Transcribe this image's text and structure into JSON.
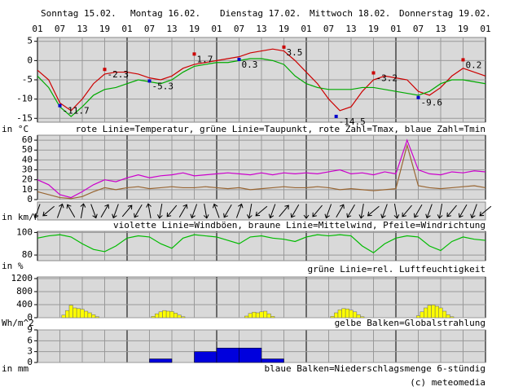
{
  "chart_data": [
    {
      "type": "line",
      "day_labels": [
        "Sonntag 15.02.",
        "Montag 16.02.",
        "Dienstag 17.02.",
        "Mittwoch 18.02.",
        "Donnerstag 19.02."
      ],
      "xlim": [
        0,
        120
      ],
      "xticks": [
        {
          "value": 0,
          "label": "01"
        },
        {
          "value": 6,
          "label": "07"
        },
        {
          "value": 12,
          "label": "13"
        },
        {
          "value": 18,
          "label": "19"
        },
        {
          "value": 24,
          "label": "01"
        },
        {
          "value": 30,
          "label": "07"
        },
        {
          "value": 36,
          "label": "13"
        },
        {
          "value": 42,
          "label": "19"
        },
        {
          "value": 48,
          "label": "01"
        },
        {
          "value": 54,
          "label": "07"
        },
        {
          "value": 60,
          "label": "13"
        },
        {
          "value": 66,
          "label": "19"
        },
        {
          "value": 72,
          "label": "01"
        },
        {
          "value": 78,
          "label": "07"
        },
        {
          "value": 84,
          "label": "13"
        },
        {
          "value": 90,
          "label": "19"
        },
        {
          "value": 96,
          "label": "01"
        },
        {
          "value": 102,
          "label": "07"
        },
        {
          "value": 108,
          "label": "13"
        },
        {
          "value": 114,
          "label": "19"
        },
        {
          "value": 120,
          "label": "01"
        }
      ],
      "ylim": [
        -16,
        6
      ],
      "yticks": [
        5,
        0,
        -5,
        -10,
        -15
      ],
      "ylabel": "in °C",
      "caption": "rote Linie=Temperatur, grüne Linie=Taupunkt, rote Zahl=Tmax, blaue Zahl=Tmin",
      "x": [
        0,
        3,
        6,
        9,
        12,
        15,
        18,
        21,
        24,
        27,
        30,
        33,
        36,
        39,
        42,
        45,
        48,
        51,
        54,
        57,
        60,
        63,
        66,
        69,
        72,
        75,
        78,
        81,
        84,
        87,
        90,
        93,
        96,
        99,
        102,
        105,
        108,
        111,
        114,
        117,
        120
      ],
      "series": [
        {
          "color": "#cc0000",
          "values": [
            -2.5,
            -5,
            -11,
            -13,
            -10,
            -6,
            -3.5,
            -3,
            -3,
            -3.5,
            -4.5,
            -5,
            -4,
            -2,
            -1,
            -0.5,
            0,
            0.5,
            1,
            2,
            2.5,
            3,
            2.5,
            0,
            -3,
            -6,
            -10,
            -13,
            -12,
            -8,
            -5,
            -4,
            -4.5,
            -5,
            -8,
            -9,
            -7,
            -4,
            -2,
            -3,
            -4
          ]
        },
        {
          "color": "#00aa00",
          "values": [
            -4,
            -7,
            -12,
            -14.5,
            -12,
            -9,
            -7.5,
            -7,
            -6,
            -5,
            -5.5,
            -6,
            -5,
            -3,
            -1.5,
            -1,
            -0.5,
            -0.5,
            0,
            0.5,
            0.5,
            0,
            -1,
            -4,
            -6,
            -7,
            -7.5,
            -7.5,
            -7.5,
            -7,
            -7,
            -7.5,
            -8,
            -8.5,
            -9,
            -8,
            -6,
            -5,
            -5,
            -5.5,
            -6
          ]
        }
      ],
      "tmax": {
        "color": "#cc0000",
        "x": [
          18,
          42,
          66,
          90,
          114
        ],
        "values": [
          -2.3,
          1.7,
          3.5,
          -3.2,
          0.2
        ]
      },
      "tmin": {
        "color": "#0000cc",
        "x": [
          6,
          30,
          54,
          80,
          102
        ],
        "values": [
          -11.7,
          -5.3,
          0.3,
          -14.5,
          -9.6
        ]
      }
    },
    {
      "type": "line",
      "ylim": [
        0,
        65
      ],
      "yticks": [
        60,
        50,
        40,
        30,
        20,
        10,
        0
      ],
      "ylabel": "in km/h",
      "caption": "violette Linie=Windböen, braune Linie=Mittelwind, Pfeile=Windrichtung",
      "x": [
        0,
        3,
        6,
        9,
        12,
        15,
        18,
        21,
        24,
        27,
        30,
        33,
        36,
        39,
        42,
        45,
        48,
        51,
        54,
        57,
        60,
        63,
        66,
        69,
        72,
        75,
        78,
        81,
        84,
        87,
        90,
        93,
        96,
        99,
        102,
        105,
        108,
        111,
        114,
        117,
        120
      ],
      "series": [
        {
          "color": "#cc00cc",
          "values": [
            20,
            15,
            5,
            2,
            8,
            15,
            20,
            18,
            22,
            25,
            22,
            24,
            25,
            27,
            24,
            25,
            26,
            27,
            26,
            25,
            27,
            25,
            27,
            26,
            27,
            26,
            28,
            30,
            26,
            27,
            25,
            28,
            26,
            60,
            30,
            26,
            25,
            28,
            27,
            29,
            28
          ]
        },
        {
          "color": "#996633",
          "values": [
            8,
            5,
            2,
            1,
            3,
            8,
            12,
            10,
            12,
            13,
            11,
            12,
            13,
            12,
            12,
            13,
            12,
            11,
            12,
            10,
            11,
            12,
            13,
            12,
            12,
            13,
            12,
            10,
            11,
            10,
            9,
            10,
            11,
            55,
            14,
            12,
            11,
            12,
            13,
            14,
            12
          ]
        }
      ],
      "wind_direction": [
        200,
        230,
        20,
        330,
        10,
        160,
        30,
        200,
        40,
        210,
        350,
        190,
        220,
        30,
        200,
        170,
        340,
        210,
        20,
        190,
        230,
        200,
        40,
        210,
        180,
        220,
        200,
        30,
        210,
        190,
        230,
        200,
        170,
        220,
        210,
        200,
        190,
        220,
        210,
        200,
        230
      ]
    },
    {
      "type": "line",
      "ylim": [
        75,
        101
      ],
      "yticks": [
        100,
        80
      ],
      "ylabel": "in %",
      "caption": "grüne Linie=rel. Luftfeuchtigkeit",
      "x": [
        0,
        3,
        6,
        9,
        12,
        15,
        18,
        21,
        24,
        27,
        30,
        33,
        36,
        39,
        42,
        45,
        48,
        51,
        54,
        57,
        60,
        63,
        66,
        69,
        72,
        75,
        78,
        81,
        84,
        87,
        90,
        93,
        96,
        99,
        102,
        105,
        108,
        111,
        114,
        117,
        120
      ],
      "series": [
        {
          "color": "#00bb00",
          "values": [
            95,
            97,
            98,
            96,
            90,
            85,
            83,
            88,
            95,
            97,
            96,
            90,
            86,
            95,
            98,
            97,
            96,
            93,
            90,
            96,
            97,
            95,
            94,
            92,
            96,
            98,
            97,
            98,
            97,
            88,
            82,
            90,
            95,
            97,
            96,
            88,
            84,
            92,
            96,
            94,
            93
          ]
        }
      ]
    },
    {
      "type": "bar",
      "ylim": [
        0,
        1250
      ],
      "yticks": [
        1200,
        800,
        400,
        0
      ],
      "ylabel": "Wh/m^2",
      "caption": "gelbe Balken=Globalstrahlung",
      "color": "#ffff00",
      "x": [
        7,
        8,
        9,
        10,
        11,
        12,
        13,
        14,
        15,
        16,
        31,
        32,
        33,
        34,
        35,
        36,
        37,
        38,
        39,
        56,
        57,
        58,
        59,
        60,
        61,
        62,
        63,
        79,
        80,
        81,
        82,
        83,
        84,
        85,
        86,
        87,
        102,
        103,
        104,
        105,
        106,
        107,
        108,
        109,
        110,
        111
      ],
      "values": [
        80,
        220,
        380,
        300,
        280,
        260,
        200,
        150,
        90,
        30,
        40,
        120,
        180,
        220,
        200,
        190,
        140,
        80,
        30,
        50,
        130,
        170,
        150,
        180,
        200,
        120,
        40,
        40,
        150,
        240,
        280,
        270,
        230,
        180,
        90,
        30,
        60,
        180,
        300,
        380,
        390,
        350,
        300,
        200,
        90,
        30
      ]
    },
    {
      "type": "histogram",
      "ylim": [
        0,
        9
      ],
      "yticks": [
        9,
        6,
        3,
        0
      ],
      "ylabel": "in mm",
      "caption": "blaue Balken=Niederschlagsmenge 6-stündig",
      "color": "#0000dd",
      "bins": [
        30,
        36,
        42,
        48,
        54,
        60,
        66
      ],
      "values": [
        1,
        0,
        3,
        4,
        4,
        1
      ]
    }
  ],
  "credit": "(c) meteomedia"
}
